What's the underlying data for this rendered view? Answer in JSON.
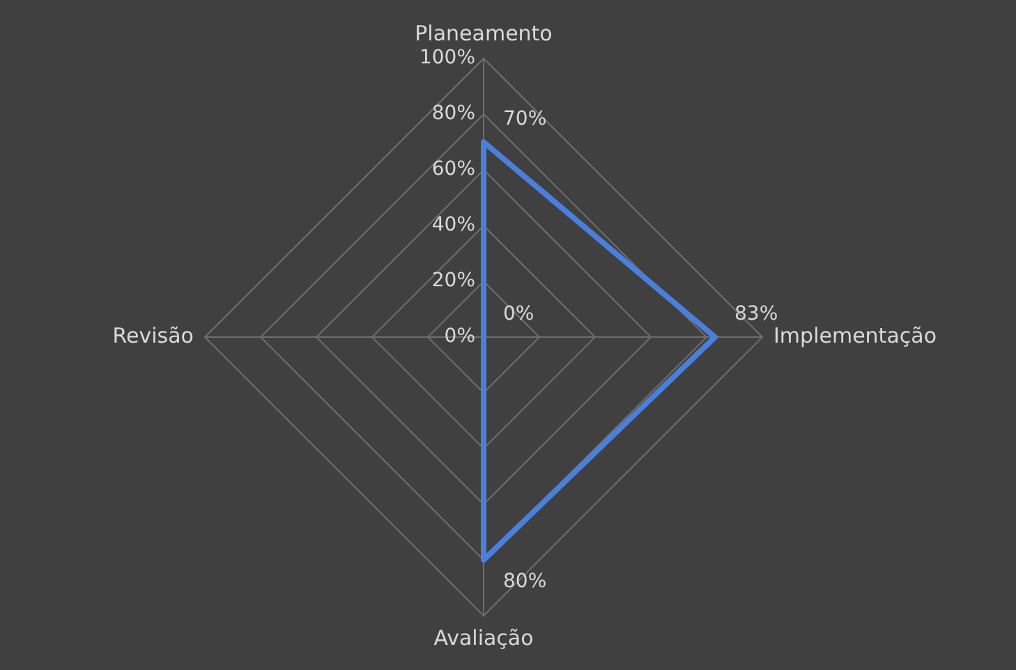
{
  "chart_data": {
    "type": "radar",
    "categories": [
      "Planeamento",
      "Implementação",
      "Avaliação",
      "Revisão"
    ],
    "series": [
      {
        "color": "#4a7fdc",
        "values": [
          70,
          83,
          80,
          0
        ],
        "value_labels": [
          "70%",
          "83%",
          "80%",
          "0%"
        ]
      }
    ],
    "ylim": [
      0,
      100
    ],
    "yticks": [
      {
        "value": 0,
        "label": "0%"
      },
      {
        "value": 20,
        "label": "20%"
      },
      {
        "value": 40,
        "label": "40%"
      },
      {
        "value": 60,
        "label": "60%"
      },
      {
        "value": 80,
        "label": "80%"
      },
      {
        "value": 100,
        "label": "100%"
      }
    ],
    "grid": true,
    "legend": false,
    "marker": "none",
    "line_style": "solid"
  }
}
